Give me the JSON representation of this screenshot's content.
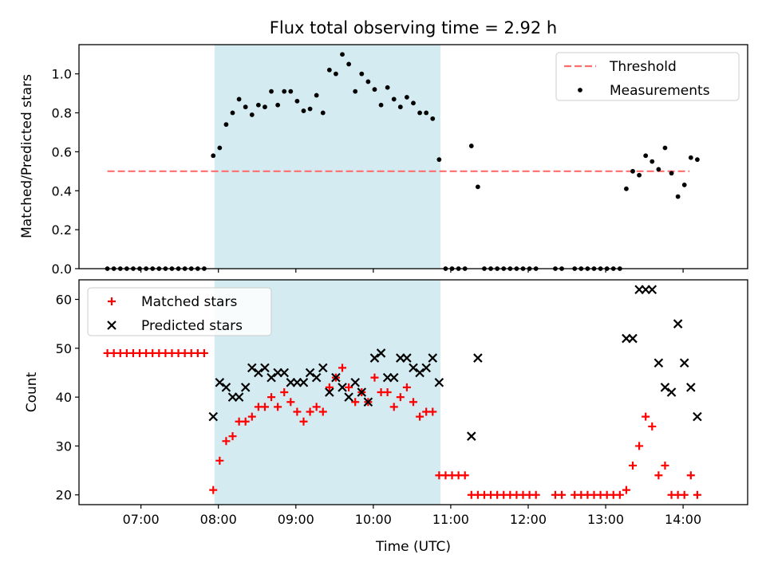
{
  "chart_data": [
    {
      "type": "scatter",
      "title": "Flux total observing time = 2.92 h",
      "xlabel": "",
      "ylabel": "Matched/Predicted stars",
      "xlim": [
        "06:12",
        "14:50"
      ],
      "ylim": [
        0,
        1.15
      ],
      "yticks": [
        "0.0",
        "0.2",
        "0.4",
        "0.6",
        "0.8",
        "1.0"
      ],
      "shaded_span": [
        "07:57",
        "10:52"
      ],
      "legend_position": "upper right",
      "grid": false,
      "series": [
        {
          "name": "Threshold",
          "kind": "dashed-line",
          "color": "#ff6e6e",
          "points": [
            [
              "06:34",
              0.5
            ],
            [
              "14:05",
              0.5
            ]
          ]
        },
        {
          "name": "Measurements",
          "kind": "dots",
          "color": "#000000",
          "points": [
            [
              "06:34",
              0
            ],
            [
              "06:39",
              0
            ],
            [
              "06:44",
              0
            ],
            [
              "06:49",
              0
            ],
            [
              "06:54",
              0
            ],
            [
              "06:59",
              0
            ],
            [
              "07:04",
              0
            ],
            [
              "07:09",
              0
            ],
            [
              "07:14",
              0
            ],
            [
              "07:19",
              0
            ],
            [
              "07:24",
              0
            ],
            [
              "07:29",
              0
            ],
            [
              "07:34",
              0
            ],
            [
              "07:39",
              0
            ],
            [
              "07:44",
              0
            ],
            [
              "07:49",
              0
            ],
            [
              "07:56",
              0.58
            ],
            [
              "08:01",
              0.62
            ],
            [
              "08:06",
              0.74
            ],
            [
              "08:11",
              0.8
            ],
            [
              "08:16",
              0.87
            ],
            [
              "08:21",
              0.83
            ],
            [
              "08:26",
              0.79
            ],
            [
              "08:31",
              0.84
            ],
            [
              "08:36",
              0.83
            ],
            [
              "08:41",
              0.91
            ],
            [
              "08:46",
              0.84
            ],
            [
              "08:51",
              0.91
            ],
            [
              "08:56",
              0.91
            ],
            [
              "09:01",
              0.86
            ],
            [
              "09:06",
              0.81
            ],
            [
              "09:11",
              0.82
            ],
            [
              "09:16",
              0.89
            ],
            [
              "09:21",
              0.8
            ],
            [
              "09:26",
              1.02
            ],
            [
              "09:31",
              1.0
            ],
            [
              "09:36",
              1.1
            ],
            [
              "09:41",
              1.05
            ],
            [
              "09:46",
              0.91
            ],
            [
              "09:51",
              1.0
            ],
            [
              "09:56",
              0.96
            ],
            [
              "10:01",
              0.92
            ],
            [
              "10:06",
              0.84
            ],
            [
              "10:11",
              0.93
            ],
            [
              "10:16",
              0.87
            ],
            [
              "10:21",
              0.83
            ],
            [
              "10:26",
              0.88
            ],
            [
              "10:31",
              0.85
            ],
            [
              "10:36",
              0.8
            ],
            [
              "10:41",
              0.8
            ],
            [
              "10:46",
              0.77
            ],
            [
              "10:51",
              0.56
            ],
            [
              "10:56",
              0
            ],
            [
              "11:01",
              0
            ],
            [
              "11:06",
              0
            ],
            [
              "11:11",
              0
            ],
            [
              "11:16",
              0.63
            ],
            [
              "11:21",
              0.42
            ],
            [
              "11:26",
              0
            ],
            [
              "11:31",
              0
            ],
            [
              "11:36",
              0
            ],
            [
              "11:41",
              0
            ],
            [
              "11:46",
              0
            ],
            [
              "11:51",
              0
            ],
            [
              "11:56",
              0
            ],
            [
              "12:01",
              0
            ],
            [
              "12:06",
              0
            ],
            [
              "12:21",
              0
            ],
            [
              "12:26",
              0
            ],
            [
              "12:36",
              0
            ],
            [
              "12:41",
              0
            ],
            [
              "12:46",
              0
            ],
            [
              "12:51",
              0
            ],
            [
              "12:56",
              0
            ],
            [
              "13:01",
              0
            ],
            [
              "13:06",
              0
            ],
            [
              "13:11",
              0
            ],
            [
              "13:16",
              0.41
            ],
            [
              "13:21",
              0.5
            ],
            [
              "13:26",
              0.48
            ],
            [
              "13:31",
              0.58
            ],
            [
              "13:36",
              0.55
            ],
            [
              "13:41",
              0.51
            ],
            [
              "13:46",
              0.62
            ],
            [
              "13:51",
              0.49
            ],
            [
              "13:56",
              0.37
            ],
            [
              "14:01",
              0.43
            ],
            [
              "14:06",
              0.57
            ],
            [
              "14:11",
              0.56
            ]
          ]
        }
      ]
    },
    {
      "type": "scatter",
      "title": "",
      "xlabel": "Time (UTC)",
      "ylabel": "Count",
      "xlim": [
        "06:12",
        "14:50"
      ],
      "ylim": [
        18,
        64
      ],
      "yticks": [
        "20",
        "30",
        "40",
        "50",
        "60"
      ],
      "xticks": [
        "07:00",
        "08:00",
        "09:00",
        "10:00",
        "11:00",
        "12:00",
        "13:00",
        "14:00"
      ],
      "shaded_span": [
        "07:57",
        "10:52"
      ],
      "legend_position": "upper left",
      "grid": false,
      "series": [
        {
          "name": "Matched stars",
          "kind": "plus",
          "color": "#ff0000",
          "points": [
            [
              "06:34",
              49
            ],
            [
              "06:39",
              49
            ],
            [
              "06:44",
              49
            ],
            [
              "06:49",
              49
            ],
            [
              "06:54",
              49
            ],
            [
              "06:59",
              49
            ],
            [
              "07:04",
              49
            ],
            [
              "07:09",
              49
            ],
            [
              "07:14",
              49
            ],
            [
              "07:19",
              49
            ],
            [
              "07:24",
              49
            ],
            [
              "07:29",
              49
            ],
            [
              "07:34",
              49
            ],
            [
              "07:39",
              49
            ],
            [
              "07:44",
              49
            ],
            [
              "07:49",
              49
            ],
            [
              "07:56",
              21
            ],
            [
              "08:01",
              27
            ],
            [
              "08:06",
              31
            ],
            [
              "08:11",
              32
            ],
            [
              "08:16",
              35
            ],
            [
              "08:21",
              35
            ],
            [
              "08:26",
              36
            ],
            [
              "08:31",
              38
            ],
            [
              "08:36",
              38
            ],
            [
              "08:41",
              40
            ],
            [
              "08:46",
              38
            ],
            [
              "08:51",
              41
            ],
            [
              "08:56",
              39
            ],
            [
              "09:01",
              37
            ],
            [
              "09:06",
              35
            ],
            [
              "09:11",
              37
            ],
            [
              "09:16",
              38
            ],
            [
              "09:21",
              37
            ],
            [
              "09:26",
              42
            ],
            [
              "09:31",
              44
            ],
            [
              "09:36",
              46
            ],
            [
              "09:41",
              42
            ],
            [
              "09:46",
              39
            ],
            [
              "09:51",
              41
            ],
            [
              "09:56",
              39
            ],
            [
              "10:01",
              44
            ],
            [
              "10:06",
              41
            ],
            [
              "10:11",
              41
            ],
            [
              "10:16",
              38
            ],
            [
              "10:21",
              40
            ],
            [
              "10:26",
              42
            ],
            [
              "10:31",
              39
            ],
            [
              "10:36",
              36
            ],
            [
              "10:41",
              37
            ],
            [
              "10:46",
              37
            ],
            [
              "10:51",
              24
            ],
            [
              "10:56",
              24
            ],
            [
              "11:01",
              24
            ],
            [
              "11:06",
              24
            ],
            [
              "11:11",
              24
            ],
            [
              "11:16",
              20
            ],
            [
              "11:21",
              20
            ],
            [
              "11:26",
              20
            ],
            [
              "11:31",
              20
            ],
            [
              "11:36",
              20
            ],
            [
              "11:41",
              20
            ],
            [
              "11:46",
              20
            ],
            [
              "11:51",
              20
            ],
            [
              "11:56",
              20
            ],
            [
              "12:01",
              20
            ],
            [
              "12:06",
              20
            ],
            [
              "12:21",
              20
            ],
            [
              "12:26",
              20
            ],
            [
              "12:36",
              20
            ],
            [
              "12:41",
              20
            ],
            [
              "12:46",
              20
            ],
            [
              "12:51",
              20
            ],
            [
              "12:56",
              20
            ],
            [
              "13:01",
              20
            ],
            [
              "13:06",
              20
            ],
            [
              "13:11",
              20
            ],
            [
              "13:16",
              21
            ],
            [
              "13:21",
              26
            ],
            [
              "13:26",
              30
            ],
            [
              "13:31",
              36
            ],
            [
              "13:36",
              34
            ],
            [
              "13:41",
              24
            ],
            [
              "13:46",
              26
            ],
            [
              "13:51",
              20
            ],
            [
              "13:56",
              20
            ],
            [
              "14:01",
              20
            ],
            [
              "14:06",
              24
            ],
            [
              "14:11",
              20
            ]
          ]
        },
        {
          "name": "Predicted stars",
          "kind": "x",
          "color": "#000000",
          "points": [
            [
              "07:56",
              36
            ],
            [
              "08:01",
              43
            ],
            [
              "08:06",
              42
            ],
            [
              "08:11",
              40
            ],
            [
              "08:16",
              40
            ],
            [
              "08:21",
              42
            ],
            [
              "08:26",
              46
            ],
            [
              "08:31",
              45
            ],
            [
              "08:36",
              46
            ],
            [
              "08:41",
              44
            ],
            [
              "08:46",
              45
            ],
            [
              "08:51",
              45
            ],
            [
              "08:56",
              43
            ],
            [
              "09:01",
              43
            ],
            [
              "09:06",
              43
            ],
            [
              "09:11",
              45
            ],
            [
              "09:16",
              44
            ],
            [
              "09:21",
              46
            ],
            [
              "09:26",
              41
            ],
            [
              "09:31",
              44
            ],
            [
              "09:36",
              42
            ],
            [
              "09:41",
              40
            ],
            [
              "09:46",
              43
            ],
            [
              "09:51",
              41
            ],
            [
              "09:56",
              39
            ],
            [
              "10:01",
              48
            ],
            [
              "10:06",
              49
            ],
            [
              "10:11",
              44
            ],
            [
              "10:16",
              44
            ],
            [
              "10:21",
              48
            ],
            [
              "10:26",
              48
            ],
            [
              "10:31",
              46
            ],
            [
              "10:36",
              45
            ],
            [
              "10:41",
              46
            ],
            [
              "10:46",
              48
            ],
            [
              "10:51",
              43
            ],
            [
              "11:16",
              32
            ],
            [
              "11:21",
              48
            ],
            [
              "13:16",
              52
            ],
            [
              "13:21",
              52
            ],
            [
              "13:26",
              62
            ],
            [
              "13:31",
              62
            ],
            [
              "13:36",
              62
            ],
            [
              "13:41",
              47
            ],
            [
              "13:46",
              42
            ],
            [
              "13:51",
              41
            ],
            [
              "13:56",
              55
            ],
            [
              "14:01",
              47
            ],
            [
              "14:06",
              42
            ],
            [
              "14:11",
              36
            ]
          ]
        }
      ]
    }
  ]
}
